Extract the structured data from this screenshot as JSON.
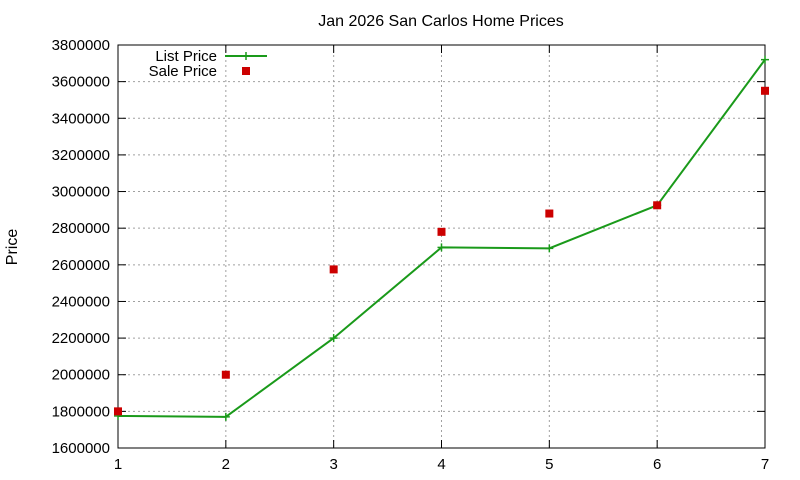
{
  "chart_data": {
    "type": "line",
    "title": "Jan 2026 San Carlos Home Prices",
    "xlabel": "",
    "ylabel": "Price",
    "x": [
      1,
      2,
      3,
      4,
      5,
      6,
      7
    ],
    "xlim": [
      1,
      7
    ],
    "ylim": [
      1600000,
      3800000
    ],
    "xticks": [
      1,
      2,
      3,
      4,
      5,
      6,
      7
    ],
    "yticks": [
      1600000,
      1800000,
      2000000,
      2200000,
      2400000,
      2600000,
      2800000,
      3000000,
      3200000,
      3400000,
      3600000,
      3800000
    ],
    "grid": true,
    "legend_position": "top-left",
    "series": [
      {
        "name": "List Price",
        "style": "line with cross markers",
        "color": "#1a9a1a",
        "values": [
          1775000,
          1770000,
          2200000,
          2695000,
          2690000,
          2925000,
          3720000
        ]
      },
      {
        "name": "Sale Price",
        "style": "square points",
        "color": "#cc0000",
        "values": [
          1800000,
          2000000,
          2575000,
          2780000,
          2880000,
          2925000,
          3550000
        ]
      }
    ]
  }
}
